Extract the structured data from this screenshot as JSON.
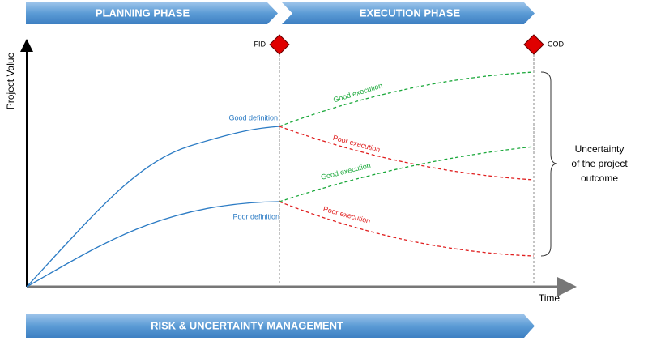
{
  "phases": [
    "PLANNING PHASE",
    "EXECUTION PHASE"
  ],
  "milestones": [
    "FID",
    "COD"
  ],
  "axes": {
    "y_label": "Project Value",
    "x_label": "Time"
  },
  "curve_labels": {
    "good_definition": "Good definition",
    "poor_definition": "Poor definition",
    "good_execution_upper": "Good execution",
    "poor_execution_upper": "Poor execution",
    "good_execution_lower": "Good execution",
    "poor_execution_lower": "Poor execution"
  },
  "uncertainty": [
    "Uncertainty",
    "of the project",
    "outcome"
  ],
  "banner": "RISK & UNCERTAINTY MANAGEMENT"
}
